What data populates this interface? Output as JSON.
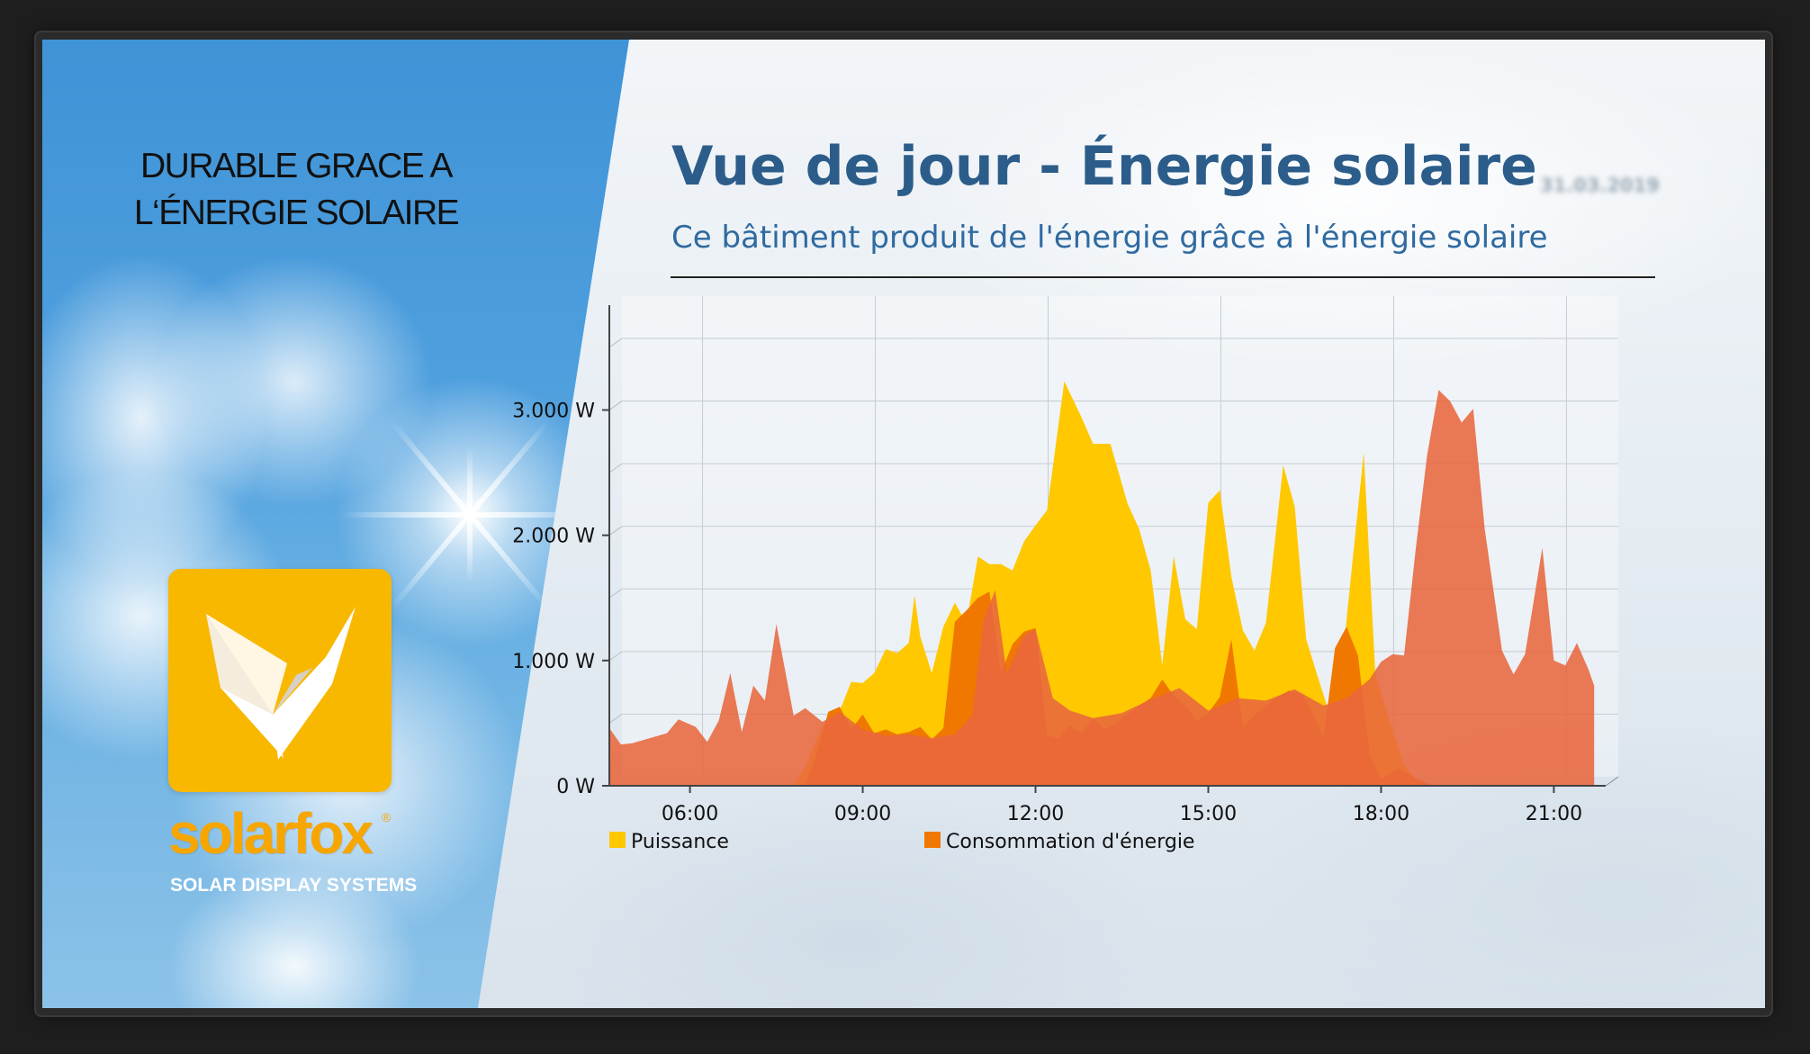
{
  "left_panel": {
    "headline_line1": "DURABLE GRACE A",
    "headline_line2": "L‘ÉNERGIE SOLAIRE",
    "brand_name": "solarfox",
    "brand_registered": "®",
    "brand_tagline": "SOLAR DISPLAY SYSTEMS",
    "logo_icon": "solarfox-fox-icon",
    "logo_color": "#f8b800"
  },
  "header": {
    "title": "Vue de jour - Énergie solaire",
    "subtitle": "Ce bâtiment produit de l'énergie grâce à l'énergie solaire",
    "date": "31.03.2019"
  },
  "chart_data": {
    "type": "area",
    "title": "",
    "xlabel": "",
    "ylabel": "",
    "x_range": [
      4.6,
      21.9
    ],
    "y_range": [
      0,
      3550
    ],
    "x_ticks": [
      6,
      9,
      12,
      15,
      18,
      21
    ],
    "x_tick_labels": [
      "06:00",
      "09:00",
      "12:00",
      "15:00",
      "18:00",
      "21:00"
    ],
    "y_ticks": [
      0,
      1000,
      2000,
      3000
    ],
    "y_tick_labels": [
      "0 W",
      "1.000 W",
      "2.000 W",
      "3.000 W"
    ],
    "grid": true,
    "legend_position": "bottom",
    "series": [
      {
        "name": "Puissance",
        "color": "#ffc800",
        "points": [
          [
            4.6,
            0
          ],
          [
            7.8,
            0
          ],
          [
            8.0,
            150
          ],
          [
            8.3,
            480
          ],
          [
            8.6,
            600
          ],
          [
            8.8,
            830
          ],
          [
            9.0,
            820
          ],
          [
            9.2,
            900
          ],
          [
            9.4,
            1090
          ],
          [
            9.6,
            1060
          ],
          [
            9.8,
            1140
          ],
          [
            9.9,
            1520
          ],
          [
            10.0,
            1190
          ],
          [
            10.2,
            900
          ],
          [
            10.4,
            1270
          ],
          [
            10.6,
            1460
          ],
          [
            10.8,
            1300
          ],
          [
            11.0,
            1830
          ],
          [
            11.2,
            1770
          ],
          [
            11.4,
            1770
          ],
          [
            11.6,
            1720
          ],
          [
            11.8,
            1950
          ],
          [
            12.0,
            2080
          ],
          [
            12.2,
            2200
          ],
          [
            12.5,
            3230
          ],
          [
            12.8,
            2940
          ],
          [
            13.0,
            2730
          ],
          [
            13.3,
            2730
          ],
          [
            13.6,
            2250
          ],
          [
            13.8,
            2050
          ],
          [
            14.0,
            1720
          ],
          [
            14.2,
            960
          ],
          [
            14.4,
            1830
          ],
          [
            14.6,
            1330
          ],
          [
            14.8,
            1250
          ],
          [
            15.0,
            2260
          ],
          [
            15.2,
            2360
          ],
          [
            15.4,
            1670
          ],
          [
            15.6,
            1240
          ],
          [
            15.8,
            1080
          ],
          [
            16.0,
            1300
          ],
          [
            16.3,
            2560
          ],
          [
            16.5,
            2230
          ],
          [
            16.7,
            1170
          ],
          [
            16.9,
            870
          ],
          [
            17.1,
            580
          ],
          [
            17.3,
            870
          ],
          [
            17.5,
            1780
          ],
          [
            17.7,
            2660
          ],
          [
            17.9,
            900
          ],
          [
            18.1,
            580
          ],
          [
            18.4,
            160
          ],
          [
            18.7,
            0
          ],
          [
            21.9,
            0
          ]
        ]
      },
      {
        "name": "Consommation d'énergie",
        "color": "#f07800",
        "points": [
          [
            4.6,
            0
          ],
          [
            8.0,
            0
          ],
          [
            8.2,
            250
          ],
          [
            8.4,
            590
          ],
          [
            8.6,
            630
          ],
          [
            8.8,
            450
          ],
          [
            9.0,
            570
          ],
          [
            9.2,
            420
          ],
          [
            9.4,
            450
          ],
          [
            9.6,
            410
          ],
          [
            9.8,
            430
          ],
          [
            10.0,
            470
          ],
          [
            10.2,
            370
          ],
          [
            10.4,
            460
          ],
          [
            10.6,
            1310
          ],
          [
            10.8,
            1400
          ],
          [
            11.0,
            1500
          ],
          [
            11.2,
            1550
          ],
          [
            11.4,
            900
          ],
          [
            11.6,
            1130
          ],
          [
            11.8,
            1230
          ],
          [
            12.0,
            1260
          ],
          [
            12.2,
            400
          ],
          [
            12.4,
            380
          ],
          [
            12.6,
            480
          ],
          [
            12.8,
            420
          ],
          [
            13.0,
            540
          ],
          [
            13.2,
            450
          ],
          [
            13.4,
            500
          ],
          [
            13.6,
            570
          ],
          [
            13.8,
            640
          ],
          [
            14.0,
            700
          ],
          [
            14.2,
            850
          ],
          [
            14.4,
            720
          ],
          [
            14.6,
            640
          ],
          [
            14.8,
            520
          ],
          [
            15.0,
            580
          ],
          [
            15.2,
            710
          ],
          [
            15.4,
            1170
          ],
          [
            15.6,
            470
          ],
          [
            15.8,
            560
          ],
          [
            16.0,
            640
          ],
          [
            16.2,
            710
          ],
          [
            16.4,
            760
          ],
          [
            16.6,
            740
          ],
          [
            16.8,
            590
          ],
          [
            17.0,
            380
          ],
          [
            17.2,
            1100
          ],
          [
            17.4,
            1270
          ],
          [
            17.6,
            1040
          ],
          [
            17.8,
            250
          ],
          [
            18.0,
            50
          ],
          [
            18.3,
            140
          ],
          [
            18.6,
            60
          ],
          [
            18.9,
            0
          ],
          [
            21.9,
            0
          ]
        ]
      },
      {
        "name": "",
        "color": "#e8673d",
        "points": [
          [
            4.6,
            0
          ],
          [
            4.6,
            460
          ],
          [
            4.8,
            330
          ],
          [
            5.0,
            340
          ],
          [
            5.3,
            380
          ],
          [
            5.6,
            420
          ],
          [
            5.8,
            530
          ],
          [
            6.1,
            470
          ],
          [
            6.3,
            350
          ],
          [
            6.5,
            520
          ],
          [
            6.7,
            900
          ],
          [
            6.9,
            430
          ],
          [
            7.1,
            800
          ],
          [
            7.3,
            680
          ],
          [
            7.5,
            1290
          ],
          [
            7.8,
            560
          ],
          [
            8.0,
            620
          ],
          [
            8.3,
            510
          ],
          [
            8.6,
            590
          ],
          [
            9.0,
            450
          ],
          [
            9.4,
            400
          ],
          [
            9.8,
            410
          ],
          [
            10.2,
            380
          ],
          [
            10.6,
            410
          ],
          [
            10.9,
            560
          ],
          [
            11.1,
            1330
          ],
          [
            11.3,
            1560
          ],
          [
            11.5,
            900
          ],
          [
            11.8,
            1200
          ],
          [
            12.0,
            1250
          ],
          [
            12.3,
            700
          ],
          [
            12.6,
            600
          ],
          [
            13.0,
            540
          ],
          [
            13.5,
            580
          ],
          [
            14.0,
            690
          ],
          [
            14.5,
            780
          ],
          [
            15.0,
            600
          ],
          [
            15.5,
            700
          ],
          [
            16.0,
            680
          ],
          [
            16.5,
            770
          ],
          [
            17.0,
            640
          ],
          [
            17.4,
            700
          ],
          [
            17.8,
            850
          ],
          [
            18.0,
            990
          ],
          [
            18.2,
            1050
          ],
          [
            18.4,
            1040
          ],
          [
            18.6,
            1880
          ],
          [
            18.8,
            2640
          ],
          [
            19.0,
            3160
          ],
          [
            19.2,
            3070
          ],
          [
            19.4,
            2900
          ],
          [
            19.6,
            3010
          ],
          [
            19.8,
            2050
          ],
          [
            20.1,
            1080
          ],
          [
            20.3,
            890
          ],
          [
            20.5,
            1050
          ],
          [
            20.8,
            1900
          ],
          [
            21.0,
            1000
          ],
          [
            21.2,
            960
          ],
          [
            21.4,
            1140
          ],
          [
            21.6,
            930
          ],
          [
            21.7,
            800
          ],
          [
            21.7,
            0
          ]
        ]
      }
    ]
  }
}
